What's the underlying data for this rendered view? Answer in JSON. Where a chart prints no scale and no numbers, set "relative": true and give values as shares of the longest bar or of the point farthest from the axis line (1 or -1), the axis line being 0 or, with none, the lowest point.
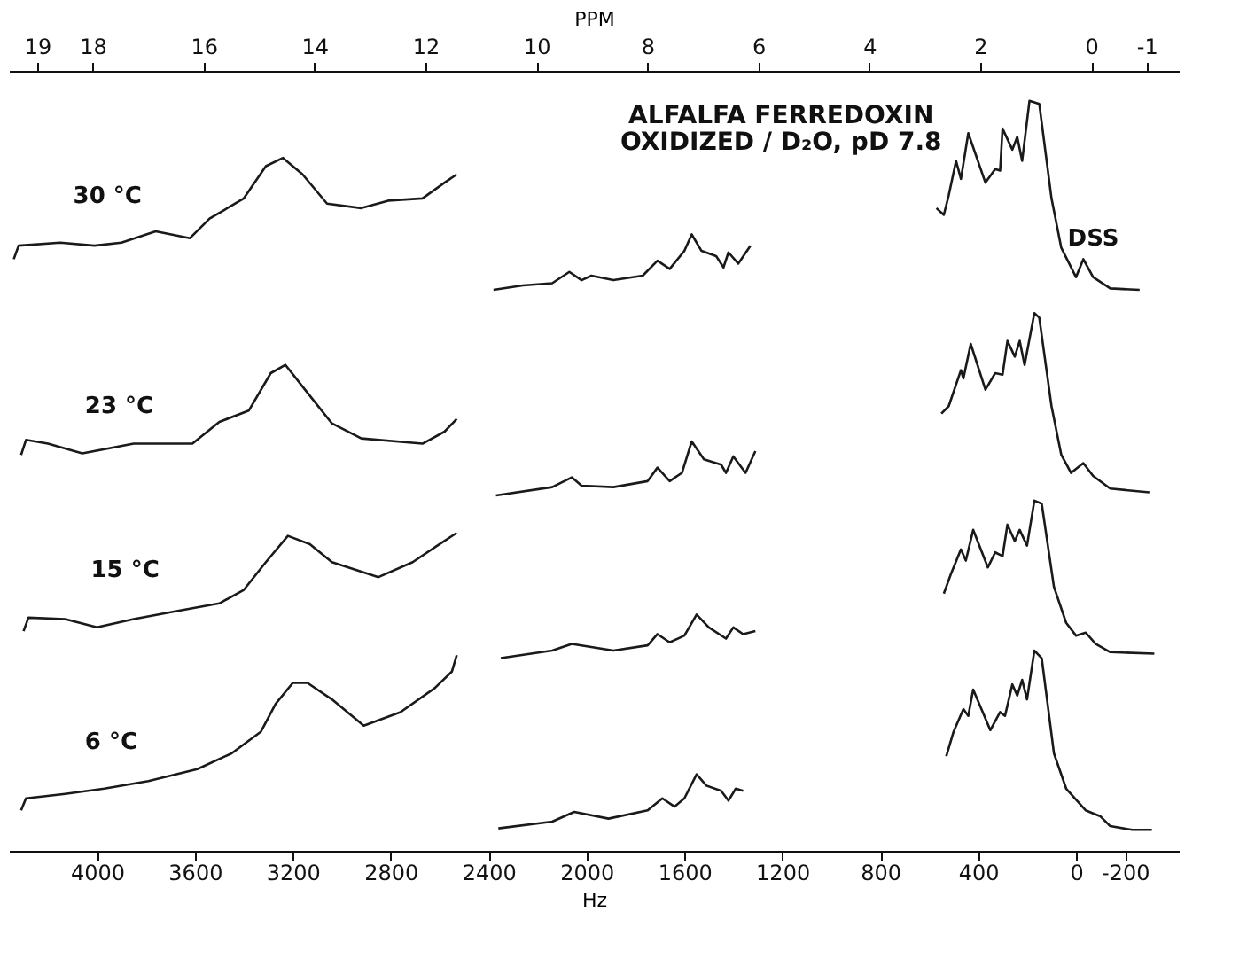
{
  "chart_data": {
    "type": "line",
    "relative": true,
    "title": "ALFALFA  FERREDOXIN",
    "subtitle": "OXIDIZED / D₂O, pD 7.8",
    "xlabel": "Hz",
    "x2label": "PPM",
    "xlim": [
      4360,
      -420
    ],
    "xticks": [
      4000,
      3600,
      3200,
      2800,
      2400,
      2000,
      1600,
      1200,
      800,
      400,
      0,
      {
        "value": -200,
        "label": "-200"
      }
    ],
    "x2lim": [
      19.51,
      -1.58
    ],
    "x2ticks": [
      19,
      18,
      16,
      14,
      12,
      10,
      8,
      6,
      4,
      2,
      0,
      {
        "value": -1,
        "label": "-1"
      }
    ],
    "grid": false,
    "marker": "none",
    "line_style": "solid",
    "annotations": [
      "30 °C",
      "23 °C",
      "15 °C",
      "6 °C",
      "DSS"
    ],
    "series": [
      {
        "color": "#1a1a1a",
        "x": [
          4340,
          4320,
          4150,
          4010,
          3900,
          3760,
          3620,
          3540,
          3400,
          3310,
          3240,
          3160,
          3060,
          2920,
          2810,
          2670,
          2580,
          2530
        ],
        "values": [
          0.789,
          0.807,
          0.811,
          0.807,
          0.811,
          0.826,
          0.817,
          0.843,
          0.87,
          0.913,
          0.924,
          0.902,
          0.863,
          0.857,
          0.867,
          0.87,
          0.891,
          0.902
        ]
      },
      {
        "color": "#1a1a1a",
        "x": [
          2380,
          2260,
          2140,
          2070,
          2020,
          1980,
          1890,
          1770,
          1710,
          1660,
          1600,
          1570,
          1530,
          1470,
          1440,
          1420,
          1380,
          1330
        ],
        "values": [
          0.748,
          0.754,
          0.757,
          0.772,
          0.761,
          0.767,
          0.761,
          0.767,
          0.787,
          0.776,
          0.8,
          0.822,
          0.8,
          0.793,
          0.778,
          0.798,
          0.783,
          0.807
        ]
      },
      {
        "color": "#1a1a1a",
        "x": [
          570,
          540,
          520,
          490,
          470,
          440,
          370,
          330,
          310,
          300,
          260,
          240,
          220,
          190,
          150,
          100,
          60,
          0,
          -30,
          -70,
          -140,
          -260
        ],
        "values": [
          0.857,
          0.848,
          0.874,
          0.92,
          0.896,
          0.957,
          0.891,
          0.909,
          0.907,
          0.963,
          0.935,
          0.952,
          0.92,
          1.0,
          0.996,
          0.87,
          0.804,
          0.765,
          0.789,
          0.765,
          0.75,
          0.748
        ]
      },
      {
        "color": "#1a1a1a",
        "x": [
          4310,
          4290,
          4200,
          4060,
          3850,
          3610,
          3500,
          3380,
          3290,
          3230,
          3150,
          3040,
          2920,
          2670,
          2580,
          2530
        ],
        "values": [
          0.528,
          0.548,
          0.543,
          0.53,
          0.543,
          0.543,
          0.572,
          0.587,
          0.637,
          0.648,
          0.615,
          0.57,
          0.55,
          0.543,
          0.559,
          0.576
        ]
      },
      {
        "color": "#1a1a1a",
        "x": [
          2370,
          2140,
          2060,
          2020,
          1890,
          1750,
          1710,
          1660,
          1610,
          1570,
          1520,
          1450,
          1430,
          1400,
          1350,
          1310
        ],
        "values": [
          0.474,
          0.485,
          0.498,
          0.487,
          0.485,
          0.493,
          0.511,
          0.493,
          0.504,
          0.546,
          0.522,
          0.515,
          0.504,
          0.526,
          0.504,
          0.533
        ]
      },
      {
        "color": "#1a1a1a",
        "x": [
          550,
          520,
          470,
          460,
          430,
          370,
          330,
          300,
          280,
          250,
          230,
          210,
          170,
          150,
          100,
          60,
          20,
          -30,
          -70,
          -140,
          -300
        ],
        "values": [
          0.583,
          0.593,
          0.641,
          0.63,
          0.676,
          0.615,
          0.637,
          0.635,
          0.68,
          0.659,
          0.68,
          0.648,
          0.717,
          0.711,
          0.593,
          0.528,
          0.504,
          0.517,
          0.5,
          0.483,
          0.478
        ]
      },
      {
        "color": "#1a1a1a",
        "x": [
          4300,
          4280,
          4130,
          4000,
          3850,
          3670,
          3500,
          3400,
          3310,
          3220,
          3130,
          3040,
          2850,
          2710,
          2600,
          2530
        ],
        "values": [
          0.293,
          0.311,
          0.309,
          0.298,
          0.309,
          0.32,
          0.33,
          0.348,
          0.385,
          0.42,
          0.409,
          0.385,
          0.365,
          0.385,
          0.409,
          0.424
        ]
      },
      {
        "color": "#1a1a1a",
        "x": [
          2350,
          2140,
          2060,
          1890,
          1750,
          1710,
          1660,
          1600,
          1550,
          1500,
          1430,
          1400,
          1360,
          1310
        ],
        "values": [
          0.257,
          0.267,
          0.276,
          0.267,
          0.274,
          0.289,
          0.278,
          0.287,
          0.315,
          0.298,
          0.283,
          0.298,
          0.289,
          0.293
        ]
      },
      {
        "color": "#1a1a1a",
        "x": [
          540,
          510,
          470,
          450,
          420,
          360,
          330,
          300,
          280,
          250,
          230,
          200,
          170,
          140,
          90,
          40,
          0,
          -40,
          -80,
          -140,
          -320
        ],
        "values": [
          0.343,
          0.37,
          0.402,
          0.387,
          0.428,
          0.378,
          0.398,
          0.393,
          0.435,
          0.413,
          0.428,
          0.407,
          0.467,
          0.463,
          0.352,
          0.304,
          0.287,
          0.291,
          0.276,
          0.265,
          0.263
        ]
      },
      {
        "color": "#1a1a1a",
        "x": [
          4310,
          4290,
          4130,
          3970,
          3790,
          3590,
          3450,
          3330,
          3270,
          3200,
          3140,
          3040,
          2910,
          2760,
          2620,
          2550,
          2530
        ],
        "values": [
          0.054,
          0.07,
          0.076,
          0.083,
          0.093,
          0.109,
          0.13,
          0.159,
          0.196,
          0.224,
          0.224,
          0.202,
          0.167,
          0.185,
          0.217,
          0.239,
          0.261
        ]
      },
      {
        "color": "#1a1a1a",
        "x": [
          2360,
          2140,
          2050,
          1910,
          1750,
          1690,
          1640,
          1600,
          1550,
          1510,
          1450,
          1420,
          1390,
          1360
        ],
        "values": [
          0.03,
          0.039,
          0.052,
          0.043,
          0.054,
          0.07,
          0.059,
          0.07,
          0.102,
          0.087,
          0.08,
          0.067,
          0.083,
          0.08
        ]
      },
      {
        "color": "#1a1a1a",
        "x": [
          530,
          500,
          460,
          440,
          420,
          350,
          310,
          290,
          260,
          240,
          220,
          200,
          170,
          140,
          90,
          40,
          -40,
          -70,
          -100,
          -140,
          -230,
          -310
        ],
        "values": [
          0.126,
          0.159,
          0.189,
          0.18,
          0.215,
          0.161,
          0.185,
          0.18,
          0.222,
          0.207,
          0.228,
          0.202,
          0.267,
          0.257,
          0.13,
          0.083,
          0.054,
          0.05,
          0.046,
          0.033,
          0.028,
          0.028
        ]
      }
    ]
  }
}
